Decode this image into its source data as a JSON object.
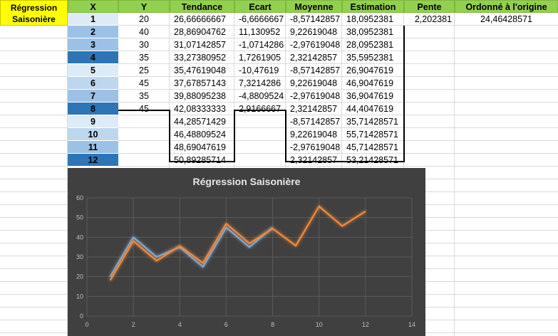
{
  "sheet": {
    "title_line1": "Régression",
    "title_line2": "Saisonière",
    "headers": {
      "x": "X",
      "y": "Y",
      "tendance": "Tendance",
      "ecart": "Ecart",
      "moyenne": "Moyenne",
      "estimation": "Estimation",
      "pente": "Pente",
      "ordonne": "Ordonné à l'origine"
    },
    "pente_value": "2,202381",
    "ordonne_value": "24,46428571",
    "rows": [
      {
        "x": "1",
        "y": "20",
        "tendance": "26,66666667",
        "ecart": "-6,6666667",
        "moyenne": "-8,57142857",
        "estimation": "18,0952381"
      },
      {
        "x": "2",
        "y": "40",
        "tendance": "28,86904762",
        "ecart": "11,130952",
        "moyenne": "9,22619048",
        "estimation": "38,0952381"
      },
      {
        "x": "3",
        "y": "30",
        "tendance": "31,07142857",
        "ecart": "-1,0714286",
        "moyenne": "-2,97619048",
        "estimation": "28,0952381"
      },
      {
        "x": "4",
        "y": "35",
        "tendance": "33,27380952",
        "ecart": "1,7261905",
        "moyenne": "2,32142857",
        "estimation": "35,5952381"
      },
      {
        "x": "5",
        "y": "25",
        "tendance": "35,47619048",
        "ecart": "-10,47619",
        "moyenne": "-8,57142857",
        "estimation": "26,9047619"
      },
      {
        "x": "6",
        "y": "45",
        "tendance": "37,67857143",
        "ecart": "7,3214286",
        "moyenne": "9,22619048",
        "estimation": "46,9047619"
      },
      {
        "x": "7",
        "y": "35",
        "tendance": "39,88095238",
        "ecart": "-4,8809524",
        "moyenne": "-2,97619048",
        "estimation": "36,9047619"
      },
      {
        "x": "8",
        "y": "45",
        "tendance": "42,08333333",
        "ecart": "2,9166667",
        "moyenne": "2,32142857",
        "estimation": "44,4047619"
      },
      {
        "x": "9",
        "y": "",
        "tendance": "44,28571429",
        "ecart": "",
        "moyenne": "-8,57142857",
        "estimation": "35,71428571"
      },
      {
        "x": "10",
        "y": "",
        "tendance": "46,48809524",
        "ecart": "",
        "moyenne": "9,22619048",
        "estimation": "55,71428571"
      },
      {
        "x": "11",
        "y": "",
        "tendance": "48,69047619",
        "ecart": "",
        "moyenne": "-2,97619048",
        "estimation": "45,71428571"
      },
      {
        "x": "12",
        "y": "",
        "tendance": "50,89285714",
        "ecart": "",
        "moyenne": "2,32142857",
        "estimation": "53,21428571"
      }
    ],
    "x_cell_colors": [
      "#ddebf7",
      "#9bc2e6",
      "#9bc2e6",
      "#2e75b6",
      "#ddebf7",
      "#bdd7ee",
      "#9bc2e6",
      "#2e75b6",
      "#ddebf7",
      "#bdd7ee",
      "#9bc2e6",
      "#2e75b6"
    ]
  },
  "chart_data": {
    "type": "line",
    "title": "Régression Saisonière",
    "xlim": [
      0,
      14
    ],
    "ylim": [
      0,
      60
    ],
    "x_ticks": [
      "0",
      "2",
      "4",
      "6",
      "8",
      "10",
      "12",
      "14"
    ],
    "y_ticks": [
      "0",
      "10",
      "20",
      "30",
      "40",
      "50",
      "60"
    ],
    "grid": true,
    "legend": "none",
    "series": [
      {
        "color": "#7aa9d8",
        "x": [
          1,
          2,
          3,
          4,
          5,
          6,
          7,
          8
        ],
        "values": [
          20,
          40,
          30,
          35,
          25,
          45,
          35,
          45
        ]
      },
      {
        "color": "#f0883a",
        "x": [
          1,
          2,
          3,
          4,
          5,
          6,
          7,
          8,
          9,
          10,
          11,
          12
        ],
        "values": [
          18.0952381,
          38.0952381,
          28.0952381,
          35.5952381,
          26.9047619,
          46.9047619,
          36.9047619,
          44.4047619,
          35.71428571,
          55.71428571,
          45.71428571,
          53.21428571
        ]
      }
    ]
  }
}
